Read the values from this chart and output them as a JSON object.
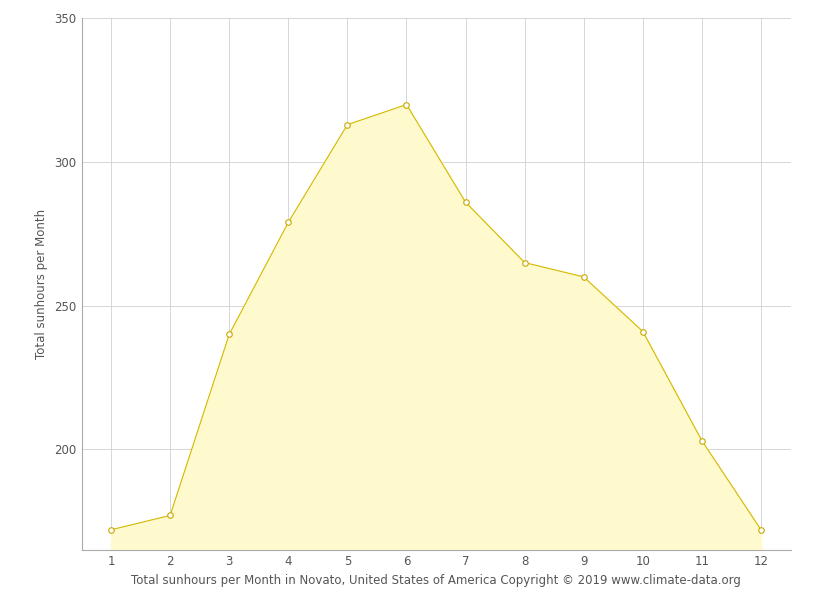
{
  "months": [
    1,
    2,
    3,
    4,
    5,
    6,
    7,
    8,
    9,
    10,
    11,
    12
  ],
  "sunhours": [
    172,
    177,
    240,
    279,
    313,
    320,
    286,
    265,
    260,
    241,
    203,
    172
  ],
  "fill_color": "#FFFACD",
  "line_color": "#D4B800",
  "marker_facecolor": "#FFFFFF",
  "marker_edgecolor": "#C8A800",
  "ylabel": "Total sunhours per Month",
  "xlabel": "Total sunhours per Month in Novato, United States of America Copyright © 2019 www.climate-data.org",
  "ylim_min": 165,
  "ylim_max": 350,
  "xlim_min": 0.5,
  "xlim_max": 12.5,
  "yticks": [
    200,
    250,
    300,
    350
  ],
  "xticks": [
    1,
    2,
    3,
    4,
    5,
    6,
    7,
    8,
    9,
    10,
    11,
    12
  ],
  "grid_color": "#d0d0d0",
  "bg_color": "#ffffff",
  "label_fontsize": 8.5,
  "tick_fontsize": 8.5,
  "figsize": [
    8.15,
    6.11
  ],
  "dpi": 100
}
